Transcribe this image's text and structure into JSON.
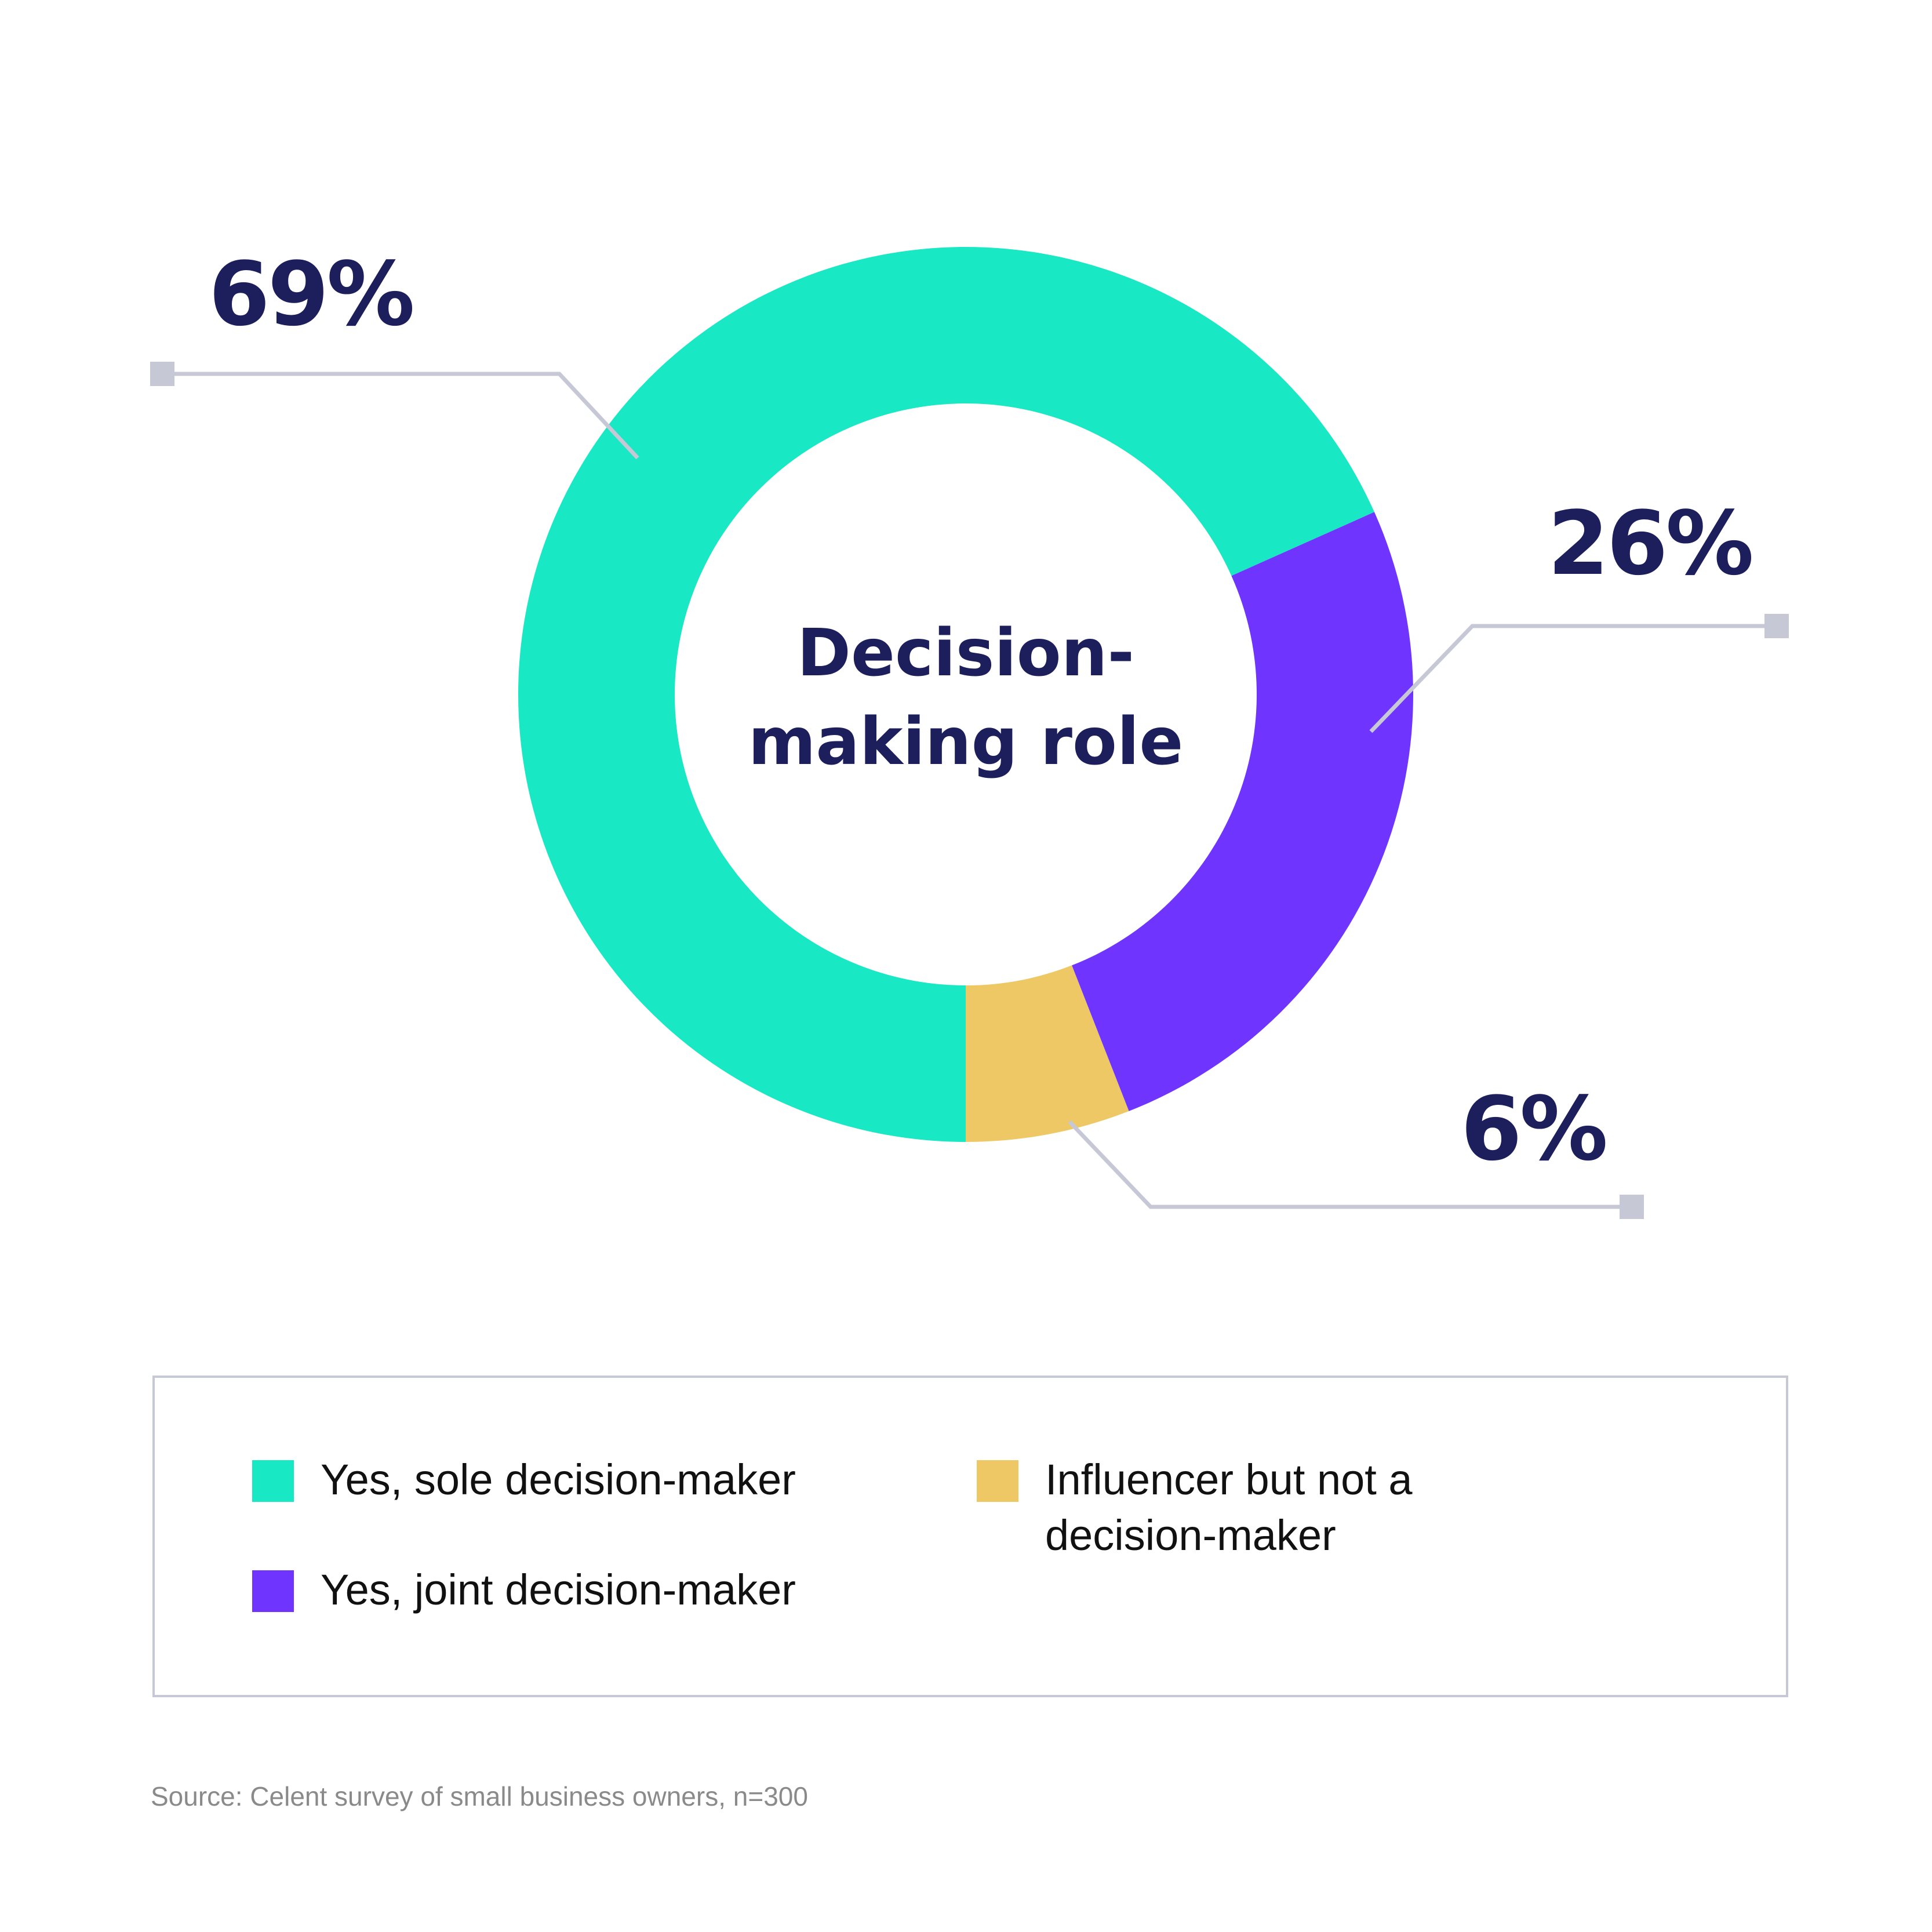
{
  "chart_data": {
    "type": "pie",
    "style": "donut",
    "center_title": [
      "Decision-",
      "making role"
    ],
    "series": [
      {
        "name": "Yes, sole decision-maker",
        "value": 69,
        "label": "69%",
        "color": "#18e8c4"
      },
      {
        "name": "Yes, joint decision-maker",
        "value": 26,
        "label": "26%",
        "color": "#6f35ff"
      },
      {
        "name": "Influencer but not a decision-maker",
        "value": 6,
        "label": "6%",
        "color": "#eec864"
      }
    ],
    "legend": {
      "items": [
        {
          "label": "Yes, sole decision-maker",
          "color": "#18e8c4"
        },
        {
          "label": "Yes, joint decision-maker",
          "color": "#6f35ff"
        },
        {
          "label_lines": [
            "Influencer but not a",
            "decision-maker"
          ],
          "color": "#eec864"
        }
      ],
      "placement": "bottom"
    },
    "leader_color": "#c6c8d6"
  },
  "source": "Source: Celent survey of small business owners, n=300"
}
